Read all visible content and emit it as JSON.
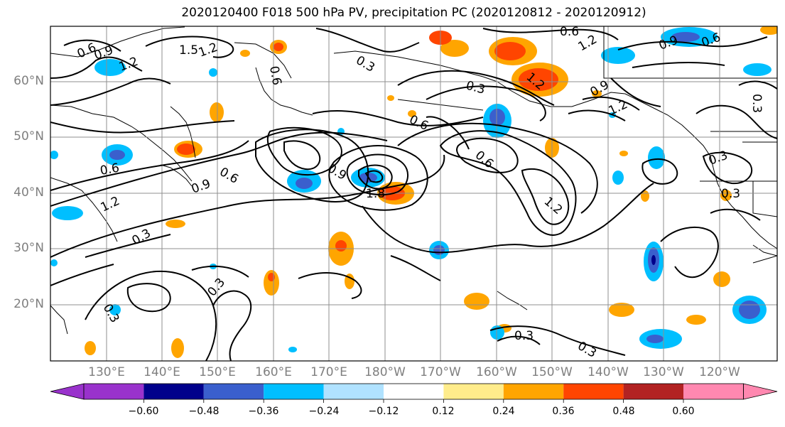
{
  "title": "2020120400 F018 500 hPa PV, precipitation PC (2020120812 - 2020120912)",
  "lat_labels": [
    "60°N",
    "50°N",
    "40°N",
    "30°N",
    "20°N"
  ],
  "lon_labels": [
    "130°E",
    "140°E",
    "150°E",
    "160°E",
    "170°E",
    "180°W",
    "170°W",
    "160°W",
    "150°W",
    "140°W",
    "130°W",
    "120°W"
  ],
  "contour_labels": [
    "0.6",
    "0.9",
    "1.2",
    "1.5",
    "1.2",
    "0.6",
    "0.3",
    "0.3",
    "1.2",
    "0.9",
    "0.6",
    "0.6",
    "1.2",
    "0.6",
    "0.9",
    "1.2",
    "0.3",
    "0.3",
    "0.6",
    "0.9",
    "1.8",
    "1.2",
    "0.9",
    "1.2",
    "0.3",
    "0.3",
    "0.6",
    "0.3",
    "0.3",
    "0.3",
    "0.6",
    "0.3"
  ],
  "colorbar": {
    "ticks": [
      "−0.60",
      "−0.48",
      "−0.36",
      "−0.24",
      "−0.12",
      "0.12",
      "0.24",
      "0.36",
      "0.48",
      "0.60"
    ],
    "colors": [
      "#9932cc",
      "#00008b",
      "#3a5fcd",
      "#00bfff",
      "#b0e2ff",
      "#ffffff",
      "#ffec8b",
      "#ffa500",
      "#ff4500",
      "#b22222",
      "#ff88b0"
    ]
  }
}
